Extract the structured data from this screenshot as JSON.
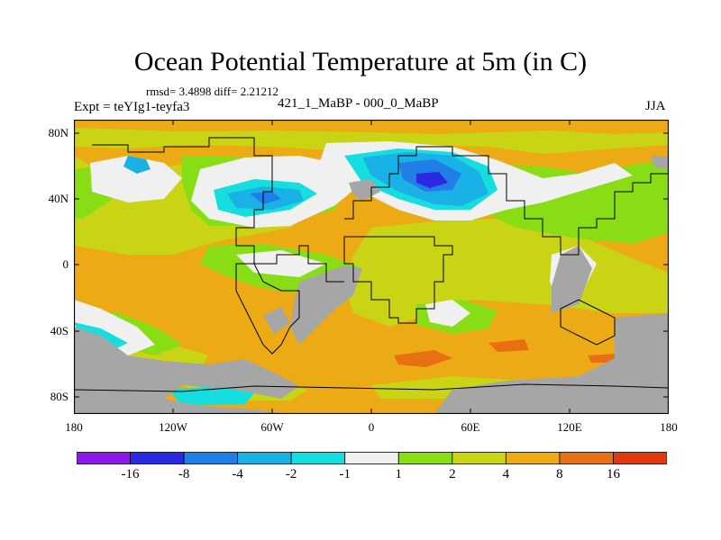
{
  "title": "Ocean Potential Temperature at 5m (in C)",
  "stats": "rmsd= 3.4898 diff= 2.21212",
  "subtitle": "421_1_MaBP - 000_0_MaBP",
  "experiment": "Expt = teYIg1-teyfa3",
  "season": "JJA",
  "axes": {
    "lat_ticks": [
      "80N",
      "40N",
      "0",
      "40S",
      "80S"
    ],
    "lon_ticks": [
      "180",
      "120W",
      "60W",
      "0",
      "60E",
      "120E",
      "180"
    ]
  },
  "colorbar": {
    "colors": [
      "#8b1ae8",
      "#2a2ae0",
      "#1f7fe6",
      "#1ab1e6",
      "#16dede",
      "#f0f0f0",
      "#88dd14",
      "#c8d414",
      "#ecaa14",
      "#e87012",
      "#e03a10"
    ],
    "labels": [
      "-16",
      "-8",
      "-4",
      "-2",
      "-1",
      "1",
      "2",
      "4",
      "8",
      "16"
    ]
  },
  "land_color": "#a6a6a6"
}
